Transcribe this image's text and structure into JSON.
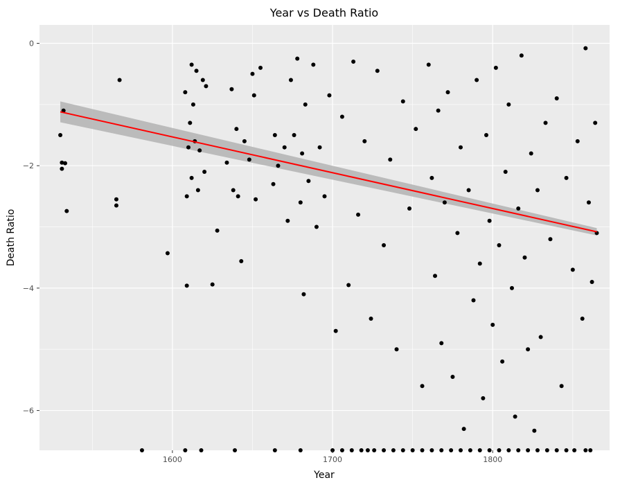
{
  "chart_data": {
    "type": "scatter",
    "title": "Year vs Death Ratio",
    "xlabel": "Year",
    "ylabel": "Death Ratio",
    "xlim": [
      1517,
      1873
    ],
    "ylim": [
      -6.65,
      0.3
    ],
    "x_ticks": [
      1600,
      1700,
      1800
    ],
    "x_minor_ticks": [
      1550,
      1650,
      1750,
      1850
    ],
    "y_ticks": [
      0,
      -2,
      -4,
      -6
    ],
    "y_minor_ticks": [
      -1,
      -3,
      -5
    ],
    "grid": true,
    "colors": {
      "panel": "#ebebeb",
      "grid": "#ffffff",
      "points": "#000000",
      "trend": "#ff0000",
      "band": "#b3b3b3"
    },
    "regression": {
      "x": [
        1530,
        1865
      ],
      "y": [
        -1.12,
        -3.08
      ],
      "band_halfwidth": [
        0.17,
        0.06
      ]
    },
    "points": {
      "x": [
        1530,
        1531,
        1531,
        1532,
        1533,
        1534,
        1565,
        1565,
        1567,
        1597,
        1608,
        1609,
        1609,
        1610,
        1611,
        1612,
        1612,
        1613,
        1614,
        1615,
        1616,
        1617,
        1619,
        1620,
        1621,
        1625,
        1628,
        1634,
        1637,
        1638,
        1640,
        1641,
        1643,
        1645,
        1648,
        1650,
        1651,
        1652,
        1655,
        1663,
        1664,
        1666,
        1670,
        1672,
        1674,
        1676,
        1678,
        1680,
        1681,
        1682,
        1683,
        1685,
        1688,
        1690,
        1692,
        1695,
        1698,
        1702,
        1706,
        1710,
        1713,
        1716,
        1720,
        1724,
        1728,
        1732,
        1736,
        1740,
        1744,
        1748,
        1752,
        1756,
        1760,
        1762,
        1764,
        1766,
        1768,
        1770,
        1772,
        1775,
        1778,
        1780,
        1782,
        1785,
        1788,
        1790,
        1792,
        1794,
        1796,
        1798,
        1800,
        1802,
        1804,
        1806,
        1808,
        1810,
        1812,
        1814,
        1816,
        1818,
        1820,
        1822,
        1824,
        1826,
        1828,
        1830,
        1833,
        1836,
        1840,
        1843,
        1846,
        1850,
        1853,
        1856,
        1858,
        1860,
        1862,
        1864,
        1865
      ],
      "y": [
        -1.5,
        -1.95,
        -2.05,
        -1.1,
        -1.96,
        -2.74,
        -2.55,
        -2.65,
        -0.6,
        -3.43,
        -0.8,
        -2.5,
        -3.96,
        -1.7,
        -1.3,
        -0.35,
        -2.2,
        -1.0,
        -1.6,
        -0.45,
        -2.4,
        -1.75,
        -0.6,
        -2.1,
        -0.7,
        -3.94,
        -3.06,
        -1.95,
        -0.75,
        -2.4,
        -1.4,
        -2.5,
        -3.56,
        -1.6,
        -1.9,
        -0.5,
        -0.85,
        -2.55,
        -0.4,
        -2.3,
        -1.5,
        -2.0,
        -1.7,
        -2.9,
        -0.6,
        -1.5,
        -0.25,
        -2.6,
        -1.8,
        -4.1,
        -1.0,
        -2.25,
        -0.35,
        -3.0,
        -1.7,
        -2.5,
        -0.85,
        -4.7,
        -1.2,
        -3.95,
        -0.3,
        -2.8,
        -1.6,
        -4.5,
        -0.45,
        -3.3,
        -1.9,
        -5.0,
        -0.95,
        -2.7,
        -1.4,
        -5.6,
        -0.35,
        -2.2,
        -3.8,
        -1.1,
        -4.9,
        -2.6,
        -0.8,
        -5.45,
        -3.1,
        -1.7,
        -6.3,
        -2.4,
        -4.2,
        -0.6,
        -3.6,
        -5.8,
        -1.5,
        -2.9,
        -4.6,
        -0.4,
        -3.3,
        -5.2,
        -2.1,
        -1.0,
        -4.0,
        -6.1,
        -2.7,
        -0.2,
        -3.5,
        -5.0,
        -1.8,
        -6.33,
        -2.4,
        -4.8,
        -1.3,
        -3.2,
        -0.9,
        -5.6,
        -2.2,
        -3.7,
        -1.6,
        -4.5,
        -0.08,
        -2.6,
        -3.9,
        -1.3,
        -3.1
      ],
      "floor_x": [
        1581,
        1608,
        1618,
        1639,
        1664,
        1680,
        1700,
        1706,
        1712,
        1718,
        1722,
        1726,
        1732,
        1738,
        1744,
        1750,
        1756,
        1762,
        1768,
        1774,
        1780,
        1786,
        1792,
        1798,
        1804,
        1810,
        1816,
        1822,
        1828,
        1834,
        1840,
        1846,
        1851,
        1858,
        1861
      ]
    }
  }
}
